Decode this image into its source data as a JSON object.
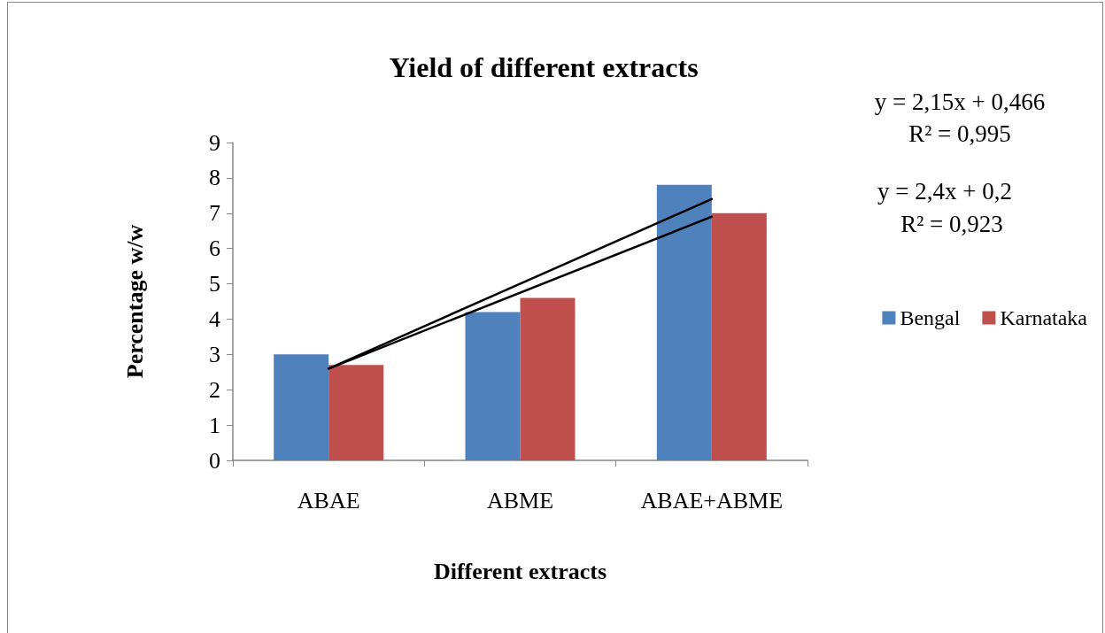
{
  "chart_data": {
    "type": "bar",
    "title": "Yield of different extracts",
    "xlabel": "Different extracts",
    "ylabel": "Percentage w/w",
    "categories": [
      "ABAE",
      "ABME",
      "ABAE+ABME"
    ],
    "series": [
      {
        "name": "Bengal",
        "color": "#4f81bd",
        "values": [
          3.0,
          4.2,
          7.8
        ]
      },
      {
        "name": "Karnataka",
        "color": "#c0504d",
        "values": [
          2.7,
          4.6,
          7.0
        ]
      },
      {
        "type": "line",
        "color": "#000000",
        "x": [
          "ABAE",
          "ABAE+ABME"
        ],
        "values": [
          2.6,
          6.9
        ]
      },
      {
        "type": "line",
        "color": "#000000",
        "x": [
          "ABAE",
          "ABAE+ABME"
        ],
        "values": [
          2.6,
          7.4
        ]
      }
    ],
    "ylim": [
      0,
      9
    ],
    "yticks": [
      0,
      1,
      2,
      3,
      4,
      5,
      6,
      7,
      8,
      9
    ],
    "grid": false,
    "legend": "right",
    "marker": "none",
    "annotations": [
      "y = 2,15x + 0,466",
      "R² = 0,995",
      "y = 2,4x + 0,2",
      "R² = 0,923"
    ]
  }
}
